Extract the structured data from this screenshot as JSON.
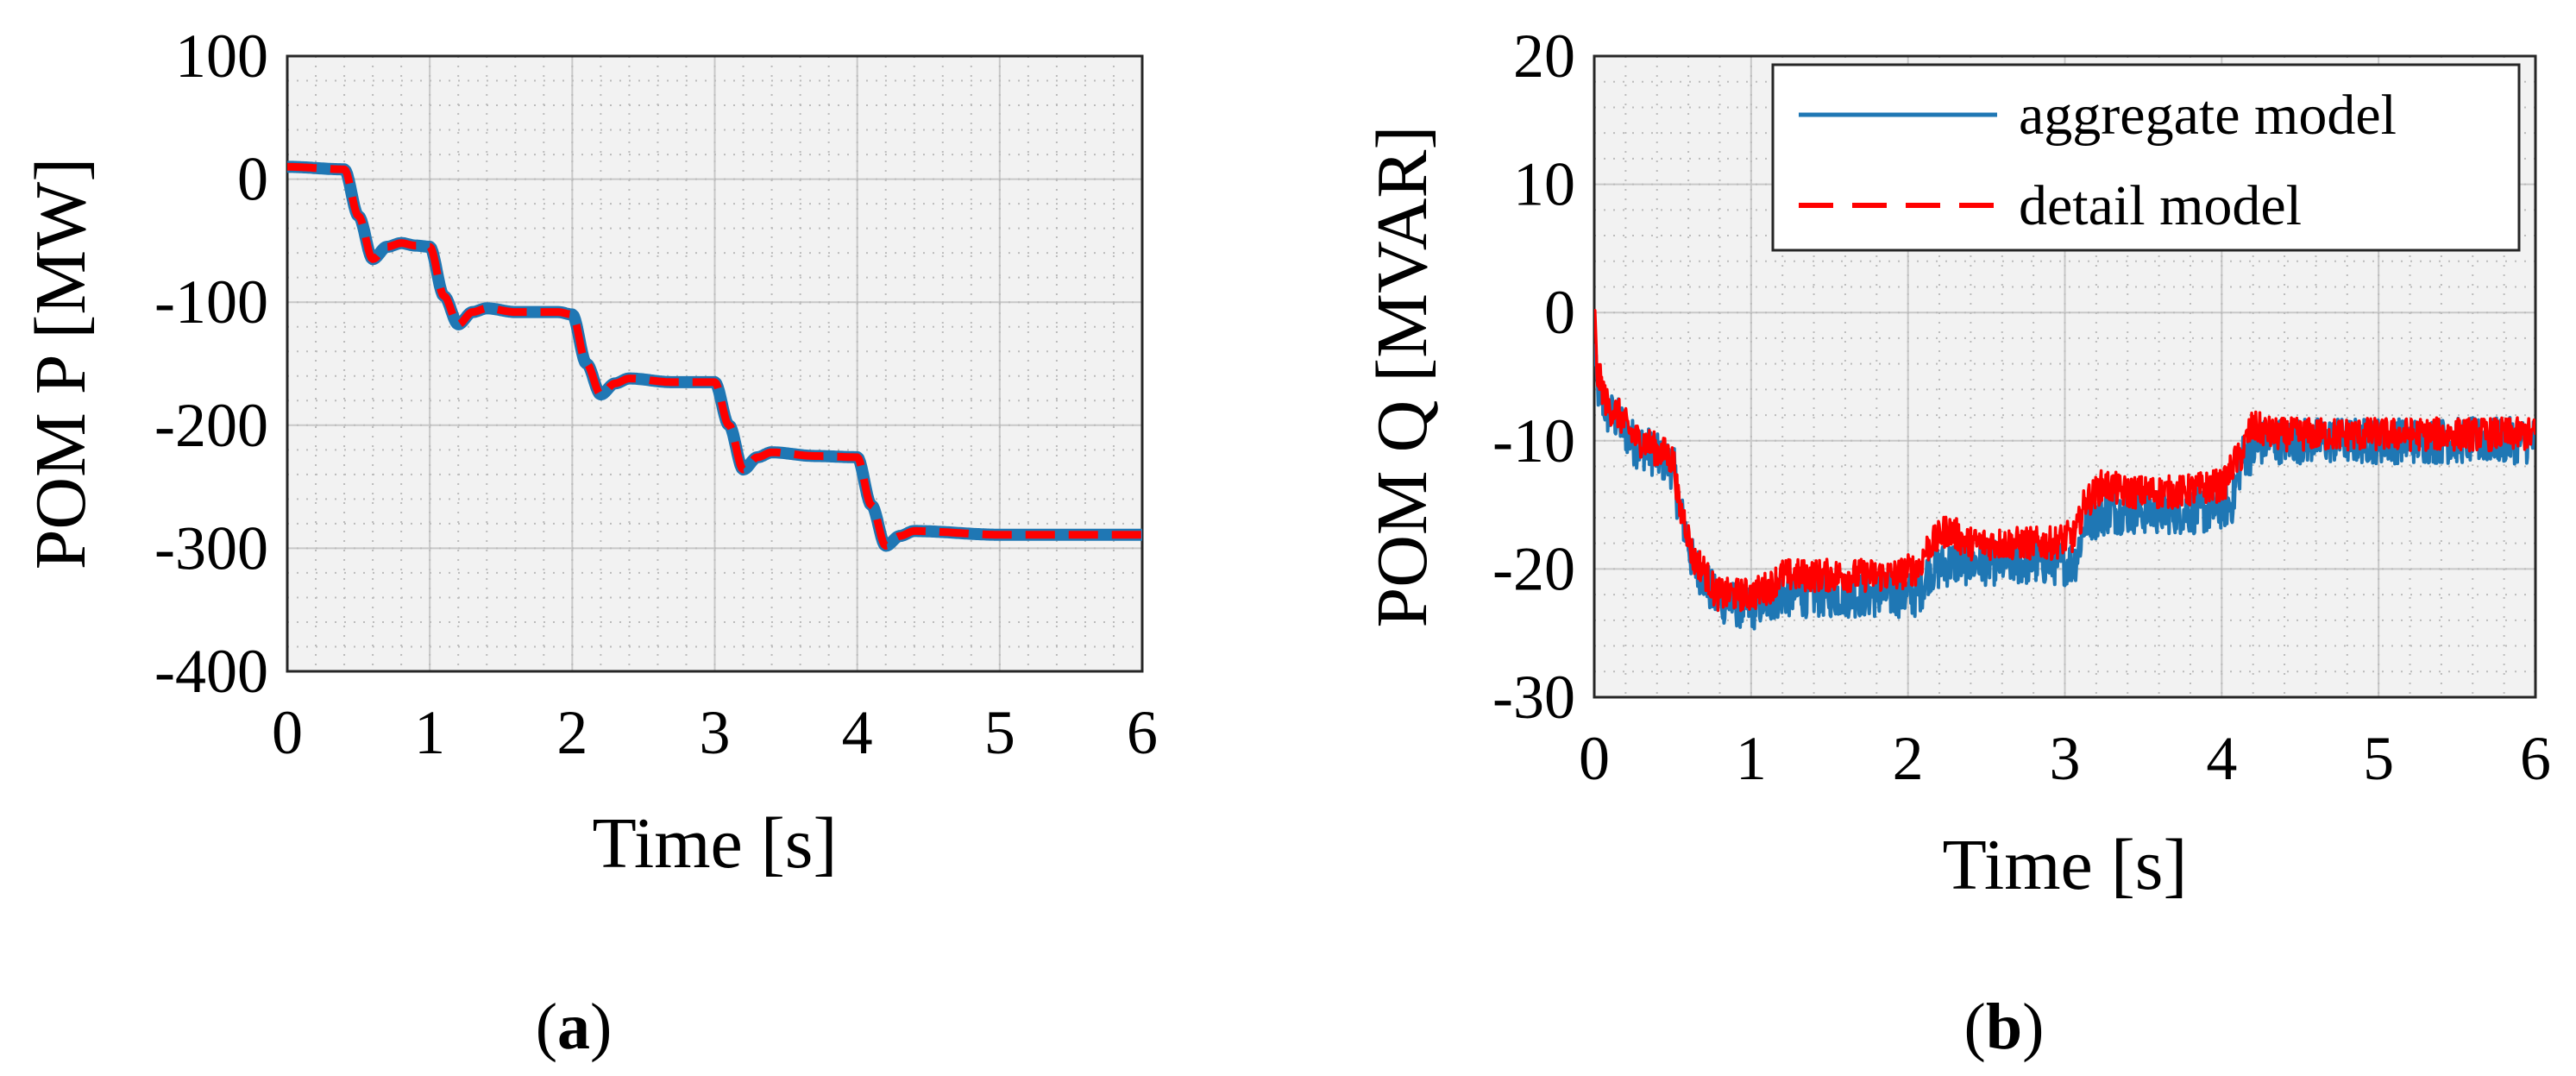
{
  "chart_data": [
    {
      "type": "line",
      "panel_label": "a",
      "xlabel": "Time [s]",
      "ylabel": "POM P [MW]",
      "xlim": [
        0,
        6
      ],
      "ylim": [
        -400,
        100
      ],
      "xticks": [
        "0",
        "1",
        "2",
        "3",
        "4",
        "5",
        "6"
      ],
      "yticks": [
        "100",
        "0",
        "-100",
        "-200",
        "-300",
        "-400"
      ],
      "grid": true,
      "legend": null,
      "series": [
        {
          "color": "#1f77b4",
          "style": "solid",
          "points": [
            [
              0,
              10
            ],
            [
              0.4,
              8
            ],
            [
              0.5,
              -30
            ],
            [
              0.6,
              -65
            ],
            [
              0.7,
              -55
            ],
            [
              0.8,
              -52
            ],
            [
              0.9,
              -54
            ],
            [
              1.0,
              -55
            ],
            [
              1.1,
              -95
            ],
            [
              1.2,
              -118
            ],
            [
              1.3,
              -108
            ],
            [
              1.4,
              -105
            ],
            [
              1.6,
              -108
            ],
            [
              1.9,
              -108
            ],
            [
              2.0,
              -110
            ],
            [
              2.1,
              -150
            ],
            [
              2.2,
              -175
            ],
            [
              2.3,
              -166
            ],
            [
              2.4,
              -162
            ],
            [
              2.7,
              -165
            ],
            [
              3.0,
              -165
            ],
            [
              3.1,
              -200
            ],
            [
              3.2,
              -236
            ],
            [
              3.3,
              -226
            ],
            [
              3.4,
              -222
            ],
            [
              3.7,
              -225
            ],
            [
              4.0,
              -226
            ],
            [
              4.1,
              -265
            ],
            [
              4.2,
              -298
            ],
            [
              4.3,
              -290
            ],
            [
              4.4,
              -286
            ],
            [
              5.0,
              -289
            ],
            [
              6.0,
              -289
            ]
          ]
        },
        {
          "color": "#ff0000",
          "style": "dashed",
          "points": [
            [
              0,
              10
            ],
            [
              0.4,
              8
            ],
            [
              0.5,
              -30
            ],
            [
              0.6,
              -65
            ],
            [
              0.7,
              -55
            ],
            [
              0.8,
              -52
            ],
            [
              0.9,
              -54
            ],
            [
              1.0,
              -55
            ],
            [
              1.1,
              -95
            ],
            [
              1.2,
              -118
            ],
            [
              1.3,
              -108
            ],
            [
              1.4,
              -105
            ],
            [
              1.6,
              -108
            ],
            [
              1.9,
              -108
            ],
            [
              2.0,
              -110
            ],
            [
              2.1,
              -150
            ],
            [
              2.2,
              -175
            ],
            [
              2.3,
              -166
            ],
            [
              2.4,
              -162
            ],
            [
              2.7,
              -165
            ],
            [
              3.0,
              -165
            ],
            [
              3.1,
              -200
            ],
            [
              3.2,
              -236
            ],
            [
              3.3,
              -226
            ],
            [
              3.4,
              -222
            ],
            [
              3.7,
              -225
            ],
            [
              4.0,
              -226
            ],
            [
              4.1,
              -265
            ],
            [
              4.2,
              -298
            ],
            [
              4.3,
              -290
            ],
            [
              4.4,
              -286
            ],
            [
              5.0,
              -289
            ],
            [
              6.0,
              -289
            ]
          ]
        }
      ]
    },
    {
      "type": "line",
      "panel_label": "b",
      "xlabel": "Time [s]",
      "ylabel": "POM Q [MVAR]",
      "xlim": [
        0,
        6
      ],
      "ylim": [
        -30,
        20
      ],
      "xticks": [
        "0",
        "1",
        "2",
        "3",
        "4",
        "5",
        "6"
      ],
      "yticks": [
        "20",
        "10",
        "0",
        "-10",
        "-20",
        "-30"
      ],
      "grid": true,
      "legend": "top-right",
      "series": [
        {
          "name": "aggregate model",
          "color": "#1f77b4",
          "style": "solid",
          "noise": 1.8,
          "points": [
            [
              0,
              -3
            ],
            [
              0.02,
              -6
            ],
            [
              0.1,
              -8
            ],
            [
              0.3,
              -10.5
            ],
            [
              0.45,
              -11.5
            ],
            [
              0.5,
              -12
            ],
            [
              0.55,
              -16
            ],
            [
              0.65,
              -20
            ],
            [
              0.8,
              -22.5
            ],
            [
              1.0,
              -23
            ],
            [
              1.1,
              -22.5
            ],
            [
              1.2,
              -22
            ],
            [
              1.5,
              -22
            ],
            [
              1.9,
              -22
            ],
            [
              2.05,
              -22
            ],
            [
              2.15,
              -20
            ],
            [
              2.3,
              -19.5
            ],
            [
              2.6,
              -19.5
            ],
            [
              2.9,
              -19.5
            ],
            [
              3.05,
              -19.5
            ],
            [
              3.15,
              -16
            ],
            [
              3.3,
              -15.5
            ],
            [
              3.6,
              -15.5
            ],
            [
              3.9,
              -15.5
            ],
            [
              4.05,
              -15
            ],
            [
              4.15,
              -11
            ],
            [
              4.3,
              -10
            ],
            [
              4.6,
              -10
            ],
            [
              5.0,
              -10
            ],
            [
              6.0,
              -10
            ]
          ]
        },
        {
          "name": "detail model",
          "color": "#ff0000",
          "style": "dashed",
          "noise": 1.3,
          "points": [
            [
              0,
              0
            ],
            [
              0.02,
              -5
            ],
            [
              0.1,
              -7.5
            ],
            [
              0.3,
              -10
            ],
            [
              0.45,
              -11
            ],
            [
              0.5,
              -11.5
            ],
            [
              0.55,
              -15.5
            ],
            [
              0.65,
              -19.5
            ],
            [
              0.8,
              -22
            ],
            [
              1.0,
              -22
            ],
            [
              1.1,
              -21.5
            ],
            [
              1.2,
              -20.5
            ],
            [
              1.5,
              -20.5
            ],
            [
              1.9,
              -20.5
            ],
            [
              2.05,
              -20
            ],
            [
              2.15,
              -18
            ],
            [
              2.25,
              -17
            ],
            [
              2.4,
              -18
            ],
            [
              2.7,
              -18
            ],
            [
              2.9,
              -18
            ],
            [
              3.05,
              -17.5
            ],
            [
              3.15,
              -14.5
            ],
            [
              3.25,
              -13.5
            ],
            [
              3.4,
              -14
            ],
            [
              3.7,
              -14
            ],
            [
              4.0,
              -13.5
            ],
            [
              4.1,
              -11.5
            ],
            [
              4.2,
              -9
            ],
            [
              4.35,
              -9.5
            ],
            [
              4.7,
              -9.5
            ],
            [
              5.0,
              -9.5
            ],
            [
              6.0,
              -9.5
            ]
          ]
        }
      ]
    }
  ]
}
